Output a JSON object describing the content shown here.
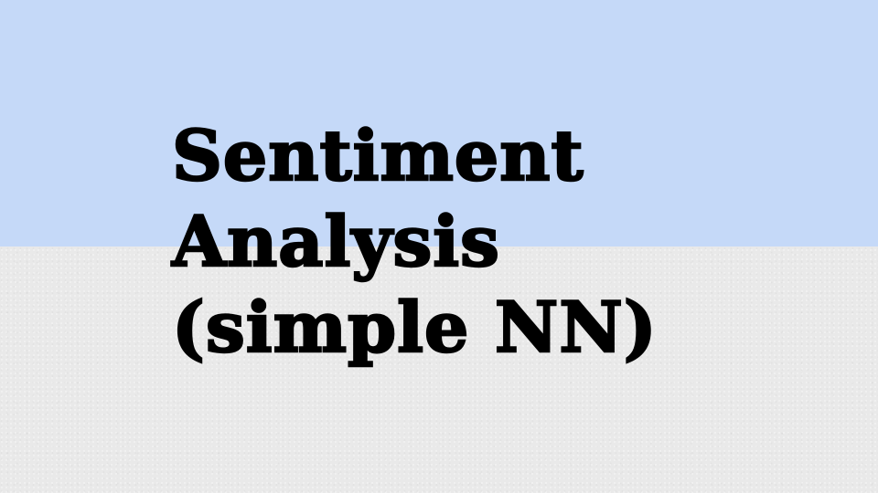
{
  "slide": {
    "title_lines": [
      "Sentiment",
      "Analysis",
      "(simple NN)"
    ]
  },
  "colors": {
    "top_band": "#c5d9f8",
    "bottom_band": "#e9e9e9",
    "title_text": "#000000"
  }
}
